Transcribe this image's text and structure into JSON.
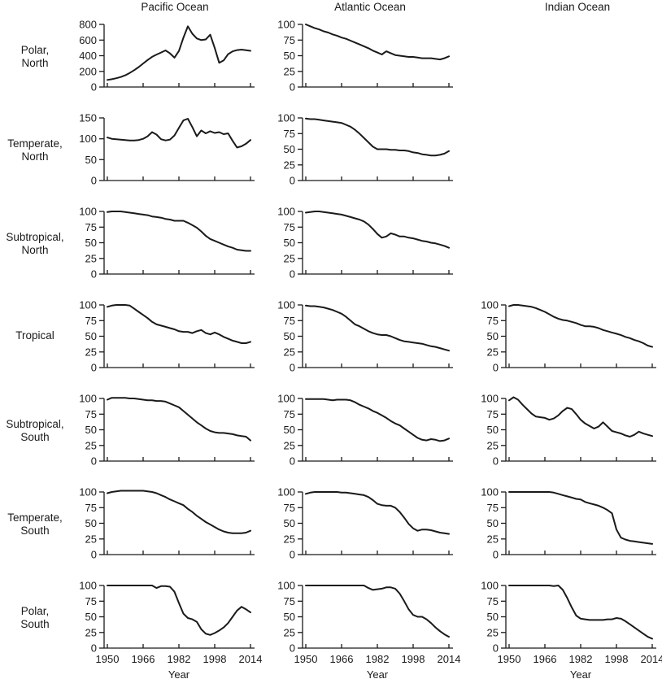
{
  "page": {
    "background": "#ffffff",
    "text_color": "#1a1a1a",
    "line_color": "#1a1a1a"
  },
  "columns": [
    {
      "label": "Pacific Ocean"
    },
    {
      "label": "Atlantic Ocean"
    },
    {
      "label": "Indian Ocean"
    }
  ],
  "rows": [
    {
      "line1": "Polar,",
      "line2": "North"
    },
    {
      "line1": "Temperate,",
      "line2": "North"
    },
    {
      "line1": "Subtropical,",
      "line2": "North"
    },
    {
      "line1": "Tropical",
      "line2": ""
    },
    {
      "line1": "Subtropical,",
      "line2": "South"
    },
    {
      "line1": "Temperate,",
      "line2": "South"
    },
    {
      "line1": "Polar,",
      "line2": "South"
    }
  ],
  "x_axis": {
    "label": "Year",
    "ticks": [
      1950,
      1966,
      1982,
      1998,
      2014
    ],
    "range": [
      1950,
      2014
    ]
  },
  "chart_data": {
    "type": "line-grid",
    "description": "Small-multiples grid of line charts by latitude zone (rows) and ocean (columns); Indian Ocean has no data for the three northern rows.",
    "grid_on": false,
    "years": [
      1950,
      1952,
      1954,
      1956,
      1958,
      1960,
      1962,
      1964,
      1966,
      1968,
      1970,
      1972,
      1974,
      1976,
      1978,
      1980,
      1982,
      1984,
      1986,
      1988,
      1990,
      1992,
      1994,
      1996,
      1998,
      2000,
      2002,
      2004,
      2006,
      2008,
      2010,
      2012,
      2014
    ],
    "charts": [
      {
        "id": "pacific-polar-north",
        "column": "Pacific Ocean",
        "row": "Polar, North",
        "grid": {
          "row": 0,
          "col": 0
        },
        "type": "line",
        "ylim": [
          0,
          800
        ],
        "yticks": [
          0,
          200,
          400,
          600,
          800
        ],
        "values": [
          90,
          100,
          112,
          128,
          150,
          180,
          215,
          255,
          300,
          345,
          385,
          415,
          440,
          468,
          430,
          375,
          460,
          630,
          775,
          680,
          620,
          600,
          608,
          668,
          500,
          310,
          340,
          420,
          455,
          472,
          478,
          470,
          462
        ]
      },
      {
        "id": "atlantic-polar-north",
        "column": "Atlantic Ocean",
        "row": "Polar, North",
        "grid": {
          "row": 0,
          "col": 1
        },
        "type": "line",
        "ylim": [
          0,
          100
        ],
        "yticks": [
          0,
          25,
          50,
          75,
          100
        ],
        "values": [
          100,
          97,
          94,
          92,
          89,
          87,
          84,
          82,
          79,
          77,
          74,
          71,
          68,
          65,
          62,
          58,
          55,
          52,
          57,
          54,
          51,
          50,
          49,
          48,
          48,
          47,
          46,
          46,
          46,
          45,
          44,
          46,
          49
        ]
      },
      {
        "id": "pacific-temperate-north",
        "column": "Pacific Ocean",
        "row": "Temperate, North",
        "grid": {
          "row": 1,
          "col": 0
        },
        "type": "line",
        "ylim": [
          0,
          150
        ],
        "yticks": [
          0,
          50,
          100,
          150
        ],
        "values": [
          103,
          100,
          99,
          98,
          97,
          96,
          96,
          97,
          100,
          106,
          116,
          110,
          99,
          96,
          98,
          108,
          126,
          144,
          148,
          128,
          106,
          120,
          113,
          118,
          114,
          116,
          111,
          113,
          95,
          79,
          82,
          88,
          97
        ]
      },
      {
        "id": "atlantic-temperate-north",
        "column": "Atlantic Ocean",
        "row": "Temperate, North",
        "grid": {
          "row": 1,
          "col": 1
        },
        "type": "line",
        "ylim": [
          0,
          100
        ],
        "yticks": [
          0,
          25,
          50,
          75,
          100
        ],
        "values": [
          99,
          98,
          98,
          97,
          96,
          95,
          94,
          93,
          92,
          89,
          86,
          81,
          75,
          68,
          61,
          54,
          50,
          50,
          50,
          49,
          49,
          48,
          48,
          47,
          45,
          44,
          42,
          41,
          40,
          40,
          41,
          43,
          47
        ]
      },
      {
        "id": "pacific-subtropical-north",
        "column": "Pacific Ocean",
        "row": "Subtropical, North",
        "grid": {
          "row": 2,
          "col": 0
        },
        "type": "line",
        "ylim": [
          0,
          100
        ],
        "yticks": [
          0,
          25,
          50,
          75,
          100
        ],
        "values": [
          99,
          100,
          100,
          100,
          99,
          98,
          97,
          96,
          95,
          94,
          92,
          91,
          90,
          88,
          87,
          85,
          85,
          85,
          82,
          78,
          74,
          68,
          61,
          56,
          53,
          50,
          47,
          44,
          42,
          39,
          38,
          37,
          37
        ]
      },
      {
        "id": "atlantic-subtropical-north",
        "column": "Atlantic Ocean",
        "row": "Subtropical, North",
        "grid": {
          "row": 2,
          "col": 1
        },
        "type": "line",
        "ylim": [
          0,
          100
        ],
        "yticks": [
          0,
          25,
          50,
          75,
          100
        ],
        "values": [
          98,
          99,
          100,
          100,
          99,
          98,
          97,
          96,
          95,
          93,
          91,
          89,
          87,
          84,
          79,
          72,
          64,
          58,
          60,
          65,
          63,
          60,
          60,
          58,
          57,
          55,
          53,
          52,
          50,
          49,
          47,
          45,
          42
        ]
      },
      {
        "id": "pacific-tropical",
        "column": "Pacific Ocean",
        "row": "Tropical",
        "grid": {
          "row": 3,
          "col": 0
        },
        "type": "line",
        "ylim": [
          0,
          100
        ],
        "yticks": [
          0,
          25,
          50,
          75,
          100
        ],
        "values": [
          97,
          99,
          100,
          100,
          100,
          99,
          94,
          89,
          84,
          79,
          73,
          69,
          67,
          65,
          63,
          61,
          58,
          57,
          57,
          55,
          58,
          60,
          55,
          53,
          56,
          53,
          49,
          46,
          43,
          41,
          39,
          39,
          41
        ]
      },
      {
        "id": "atlantic-tropical",
        "column": "Atlantic Ocean",
        "row": "Tropical",
        "grid": {
          "row": 3,
          "col": 1
        },
        "type": "line",
        "ylim": [
          0,
          100
        ],
        "yticks": [
          0,
          25,
          50,
          75,
          100
        ],
        "values": [
          99,
          98,
          98,
          97,
          96,
          94,
          92,
          89,
          86,
          81,
          75,
          69,
          66,
          62,
          58,
          55,
          53,
          52,
          52,
          50,
          47,
          44,
          42,
          41,
          40,
          39,
          38,
          36,
          34,
          33,
          31,
          29,
          27
        ]
      },
      {
        "id": "indian-tropical",
        "column": "Indian Ocean",
        "row": "Tropical",
        "grid": {
          "row": 3,
          "col": 2
        },
        "type": "line",
        "ylim": [
          0,
          100
        ],
        "yticks": [
          0,
          25,
          50,
          75,
          100
        ],
        "values": [
          98,
          100,
          100,
          99,
          98,
          97,
          95,
          92,
          89,
          85,
          81,
          78,
          76,
          75,
          73,
          71,
          68,
          66,
          66,
          65,
          63,
          60,
          58,
          56,
          54,
          52,
          49,
          47,
          44,
          42,
          39,
          35,
          33
        ]
      },
      {
        "id": "pacific-subtropical-south",
        "column": "Pacific Ocean",
        "row": "Subtropical, South",
        "grid": {
          "row": 4,
          "col": 0
        },
        "type": "line",
        "ylim": [
          0,
          100
        ],
        "yticks": [
          0,
          25,
          50,
          75,
          100
        ],
        "values": [
          98,
          101,
          101,
          101,
          101,
          100,
          100,
          99,
          98,
          97,
          97,
          96,
          96,
          95,
          92,
          89,
          86,
          80,
          74,
          68,
          62,
          57,
          52,
          48,
          46,
          45,
          45,
          44,
          43,
          41,
          40,
          39,
          33
        ]
      },
      {
        "id": "atlantic-subtropical-south",
        "column": "Atlantic Ocean",
        "row": "Subtropical, South",
        "grid": {
          "row": 4,
          "col": 1
        },
        "type": "line",
        "ylim": [
          0,
          100
        ],
        "yticks": [
          0,
          25,
          50,
          75,
          100
        ],
        "values": [
          99,
          99,
          99,
          99,
          99,
          98,
          97,
          98,
          98,
          98,
          97,
          94,
          90,
          87,
          84,
          80,
          77,
          73,
          69,
          64,
          60,
          57,
          52,
          47,
          42,
          37,
          34,
          33,
          35,
          34,
          32,
          33,
          36
        ]
      },
      {
        "id": "indian-subtropical-south",
        "column": "Indian Ocean",
        "row": "Subtropical, South",
        "grid": {
          "row": 4,
          "col": 2
        },
        "type": "line",
        "ylim": [
          0,
          100
        ],
        "yticks": [
          0,
          25,
          50,
          75,
          100
        ],
        "values": [
          97,
          102,
          98,
          90,
          83,
          76,
          71,
          70,
          69,
          66,
          68,
          73,
          80,
          85,
          83,
          75,
          66,
          60,
          56,
          52,
          55,
          62,
          55,
          48,
          46,
          44,
          41,
          39,
          42,
          47,
          44,
          42,
          40
        ]
      },
      {
        "id": "pacific-temperate-south",
        "column": "Pacific Ocean",
        "row": "Temperate, South",
        "grid": {
          "row": 5,
          "col": 0
        },
        "type": "line",
        "ylim": [
          0,
          100
        ],
        "yticks": [
          0,
          25,
          50,
          75,
          100
        ],
        "values": [
          98,
          100,
          101,
          102,
          102,
          102,
          102,
          102,
          102,
          101,
          100,
          98,
          95,
          92,
          88,
          85,
          82,
          79,
          73,
          68,
          62,
          57,
          52,
          48,
          44,
          40,
          37,
          35,
          34,
          34,
          34,
          35,
          38
        ]
      },
      {
        "id": "atlantic-temperate-south",
        "column": "Atlantic Ocean",
        "row": "Temperate, South",
        "grid": {
          "row": 5,
          "col": 1
        },
        "type": "line",
        "ylim": [
          0,
          100
        ],
        "yticks": [
          0,
          25,
          50,
          75,
          100
        ],
        "values": [
          97,
          99,
          100,
          100,
          100,
          100,
          100,
          100,
          99,
          99,
          98,
          97,
          96,
          95,
          92,
          87,
          81,
          79,
          78,
          78,
          75,
          68,
          59,
          49,
          42,
          38,
          40,
          40,
          39,
          37,
          35,
          34,
          33
        ]
      },
      {
        "id": "indian-temperate-south",
        "column": "Indian Ocean",
        "row": "Temperate, South",
        "grid": {
          "row": 5,
          "col": 2
        },
        "type": "line",
        "ylim": [
          0,
          100
        ],
        "yticks": [
          0,
          25,
          50,
          75,
          100
        ],
        "values": [
          100,
          100,
          100,
          100,
          100,
          100,
          100,
          100,
          100,
          100,
          99,
          97,
          95,
          93,
          91,
          89,
          88,
          84,
          82,
          80,
          78,
          75,
          71,
          66,
          40,
          27,
          24,
          22,
          21,
          20,
          19,
          18,
          17
        ]
      },
      {
        "id": "pacific-polar-south",
        "column": "Pacific Ocean",
        "row": "Polar, South",
        "grid": {
          "row": 6,
          "col": 0
        },
        "type": "line",
        "ylim": [
          0,
          100
        ],
        "yticks": [
          0,
          25,
          50,
          75,
          100
        ],
        "values": [
          100,
          100,
          100,
          100,
          100,
          100,
          100,
          100,
          100,
          100,
          100,
          96,
          99,
          99,
          98,
          90,
          72,
          55,
          48,
          46,
          42,
          30,
          23,
          21,
          24,
          28,
          33,
          40,
          50,
          60,
          66,
          62,
          57
        ]
      },
      {
        "id": "atlantic-polar-south",
        "column": "Atlantic Ocean",
        "row": "Polar, South",
        "grid": {
          "row": 6,
          "col": 1
        },
        "type": "line",
        "ylim": [
          0,
          100
        ],
        "yticks": [
          0,
          25,
          50,
          75,
          100
        ],
        "values": [
          100,
          100,
          100,
          100,
          100,
          100,
          100,
          100,
          100,
          100,
          100,
          100,
          100,
          100,
          96,
          93,
          94,
          95,
          97,
          97,
          95,
          87,
          75,
          62,
          53,
          50,
          50,
          46,
          40,
          33,
          27,
          22,
          18
        ]
      },
      {
        "id": "indian-polar-south",
        "column": "Indian Ocean",
        "row": "Polar, South",
        "grid": {
          "row": 6,
          "col": 2
        },
        "type": "line",
        "ylim": [
          0,
          100
        ],
        "yticks": [
          0,
          25,
          50,
          75,
          100
        ],
        "values": [
          100,
          100,
          100,
          100,
          100,
          100,
          100,
          100,
          100,
          100,
          99,
          100,
          93,
          80,
          65,
          52,
          47,
          46,
          45,
          45,
          45,
          45,
          46,
          46,
          48,
          47,
          43,
          38,
          33,
          28,
          23,
          18,
          15
        ]
      }
    ]
  }
}
